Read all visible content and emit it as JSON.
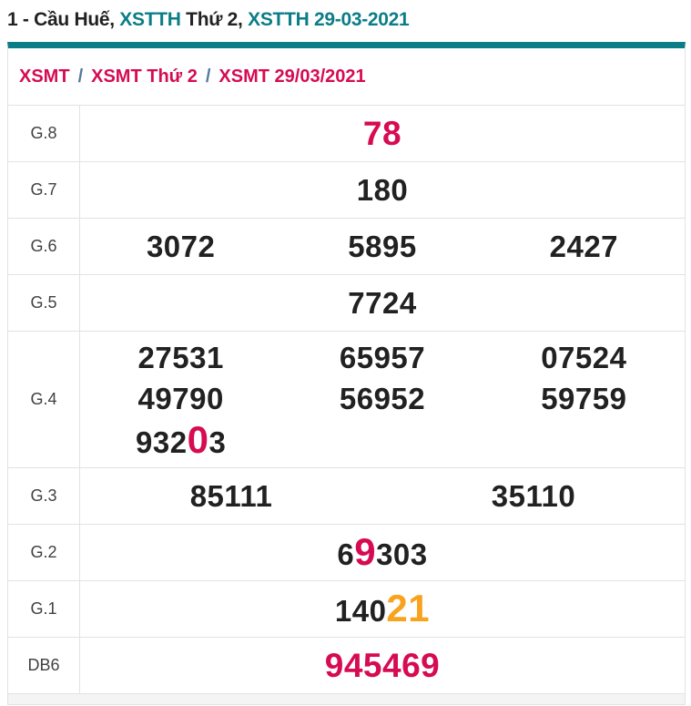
{
  "title": {
    "segments": [
      {
        "text": "1 - Cầu Huế, ",
        "style": "plain"
      },
      {
        "text": "XSTTH",
        "style": "link"
      },
      {
        "text": " Thứ 2, ",
        "style": "plain"
      },
      {
        "text": "XSTTH 29-03-2021",
        "style": "link"
      }
    ]
  },
  "breadcrumb": {
    "separator": "/",
    "items": [
      {
        "label": "XSMT"
      },
      {
        "label": "XSMT Thứ 2"
      },
      {
        "label": "XSMT 29/03/2021"
      }
    ]
  },
  "results_table": {
    "rows": [
      {
        "label": "G.8",
        "tall": false,
        "lines": [
          [
            [
              {
                "t": "78",
                "c": "crimson",
                "s": "lg"
              }
            ]
          ]
        ]
      },
      {
        "label": "G.7",
        "tall": false,
        "lines": [
          [
            [
              {
                "t": "180"
              }
            ]
          ]
        ]
      },
      {
        "label": "G.6",
        "tall": false,
        "lines": [
          [
            [
              {
                "t": "3072"
              }
            ],
            [
              {
                "t": "5895"
              }
            ],
            [
              {
                "t": "2427"
              }
            ]
          ]
        ]
      },
      {
        "label": "G.5",
        "tall": false,
        "lines": [
          [
            [
              {
                "t": "7724"
              }
            ]
          ]
        ]
      },
      {
        "label": "G.4",
        "tall": true,
        "lines": [
          [
            [
              {
                "t": "27531"
              }
            ],
            [
              {
                "t": "65957"
              }
            ],
            [
              {
                "t": "07524"
              }
            ]
          ],
          [
            [
              {
                "t": "49790"
              }
            ],
            [
              {
                "t": "56952"
              }
            ],
            [
              {
                "t": "59759"
              }
            ]
          ],
          [
            [
              {
                "t": "932"
              },
              {
                "t": "0",
                "c": "crimson",
                "s": "xl"
              },
              {
                "t": "3"
              }
            ],
            [],
            []
          ]
        ]
      },
      {
        "label": "G.3",
        "tall": false,
        "lines": [
          [
            [
              {
                "t": "85111"
              }
            ],
            [
              {
                "t": "35110"
              }
            ]
          ]
        ]
      },
      {
        "label": "G.2",
        "tall": false,
        "lines": [
          [
            [
              {
                "t": "6"
              },
              {
                "t": "9",
                "c": "crimson",
                "s": "xl"
              },
              {
                "t": "303"
              }
            ]
          ]
        ]
      },
      {
        "label": "G.1",
        "tall": false,
        "lines": [
          [
            [
              {
                "t": "140"
              },
              {
                "t": "21",
                "c": "orange",
                "s": "xl"
              }
            ]
          ]
        ]
      },
      {
        "label": "DB6",
        "tall": false,
        "lines": [
          [
            [
              {
                "t": "945469",
                "c": "crimson",
                "s": "lg"
              }
            ]
          ]
        ]
      }
    ]
  },
  "colors": {
    "accent_teal": "#0b7d87",
    "crimson": "#d60b52",
    "orange": "#f9a21b",
    "text_dark": "#212121",
    "separator_blue": "#54789c",
    "border": "#e2e2e2",
    "footer_bg": "#f4f4f4"
  }
}
